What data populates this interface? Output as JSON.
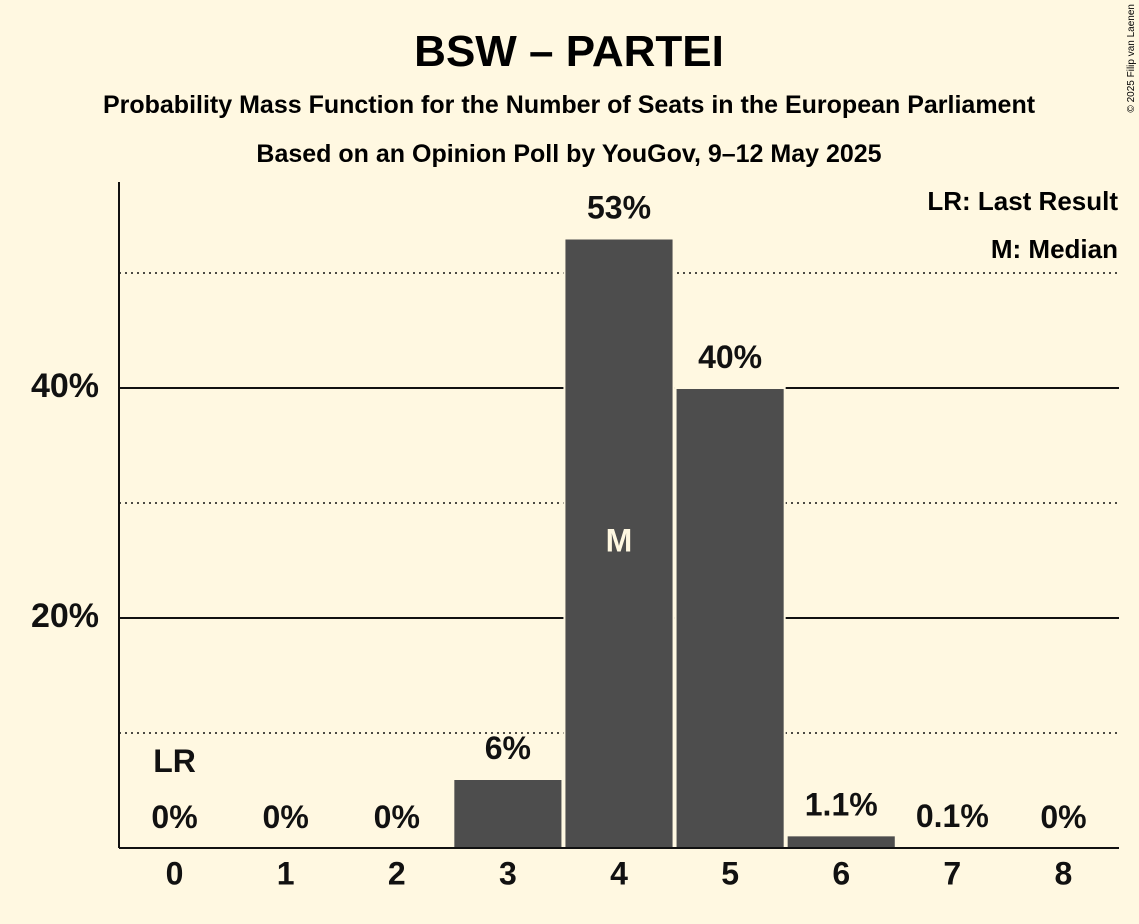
{
  "colors": {
    "background": "#fff8e1",
    "bar": "#4d4d4d",
    "text": "#111111",
    "median_text": "#fff8e1"
  },
  "chart_data": {
    "type": "bar",
    "title": "BSW – PARTEI",
    "subtitle": "Probability Mass Function for the Number of Seats in the European Parliament",
    "subtitle2": "Based on an Opinion Poll by YouGov, 9–12 May 2025",
    "copyright": "© 2025 Filip van Laenen",
    "categories": [
      "0",
      "1",
      "2",
      "3",
      "4",
      "5",
      "6",
      "7",
      "8"
    ],
    "values": [
      0,
      0,
      0,
      6,
      53,
      40,
      1.1,
      0.1,
      0
    ],
    "data_labels": [
      "0%",
      "0%",
      "0%",
      "6%",
      "53%",
      "40%",
      "1.1%",
      "0.1%",
      "0%"
    ],
    "ylim": [
      0,
      58
    ],
    "yticks": [
      20,
      40
    ],
    "ytick_labels": [
      "20%",
      "40%"
    ],
    "minor_gridlines": [
      10,
      30,
      50
    ],
    "last_result_index": 0,
    "last_result_label": "LR",
    "median_index": 4,
    "median_label": "M",
    "legend": [
      "LR: Last Result",
      "M: Median"
    ],
    "legend_position": "top-right"
  }
}
